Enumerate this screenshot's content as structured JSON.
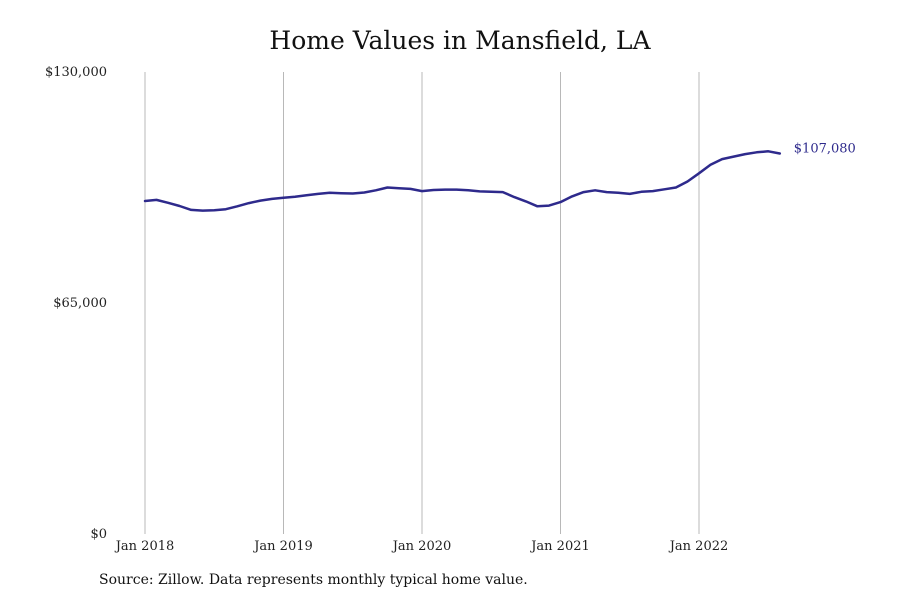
{
  "chart_data": {
    "type": "line",
    "title": "Home Values in Mansfield, LA",
    "xlabel": "",
    "ylabel": "",
    "ylim": [
      0,
      130000
    ],
    "y_ticks": [
      {
        "value": 0,
        "label": "$0"
      },
      {
        "value": 65000,
        "label": "$65,000"
      },
      {
        "value": 130000,
        "label": "$130,000"
      }
    ],
    "x_ticks": [
      {
        "value": "2018-01",
        "label": "Jan 2018"
      },
      {
        "value": "2019-01",
        "label": "Jan 2019"
      },
      {
        "value": "2020-01",
        "label": "Jan 2020"
      },
      {
        "value": "2021-01",
        "label": "Jan 2021"
      },
      {
        "value": "2022-01",
        "label": "Jan 2022"
      }
    ],
    "grid": "vertical",
    "line_color": "#2e2a8c",
    "end_label": "$107,080",
    "series": [
      {
        "x": [
          "2018-01",
          "2018-02",
          "2018-03",
          "2018-04",
          "2018-05",
          "2018-06",
          "2018-07",
          "2018-08",
          "2018-09",
          "2018-10",
          "2018-11",
          "2018-12",
          "2019-01",
          "2019-02",
          "2019-03",
          "2019-04",
          "2019-05",
          "2019-06",
          "2019-07",
          "2019-08",
          "2019-09",
          "2019-10",
          "2019-11",
          "2019-12",
          "2020-01",
          "2020-02",
          "2020-03",
          "2020-04",
          "2020-05",
          "2020-06",
          "2020-07",
          "2020-08",
          "2020-09",
          "2020-10",
          "2020-11",
          "2020-12",
          "2021-01",
          "2021-02",
          "2021-03",
          "2021-04",
          "2021-05",
          "2021-06",
          "2021-07",
          "2021-08",
          "2021-09",
          "2021-10",
          "2021-11",
          "2021-12",
          "2022-01",
          "2022-02",
          "2022-03",
          "2022-04",
          "2022-05",
          "2022-06",
          "2022-07",
          "2022-08"
        ],
        "values": [
          93700,
          94000,
          93200,
          92300,
          91200,
          91000,
          91100,
          91400,
          92200,
          93100,
          93800,
          94300,
          94600,
          94900,
          95300,
          95700,
          96000,
          95900,
          95800,
          96100,
          96700,
          97500,
          97300,
          97100,
          96500,
          96800,
          96900,
          96900,
          96700,
          96400,
          96300,
          96200,
          94800,
          93600,
          92200,
          92400,
          93400,
          95000,
          96200,
          96700,
          96200,
          96000,
          95700,
          96300,
          96500,
          97000,
          97500,
          99200,
          101500,
          103900,
          105500,
          106200,
          106900,
          107400,
          107700,
          107080
        ]
      }
    ]
  },
  "footer": {
    "source": "Source: Zillow. Data represents monthly typical home value."
  }
}
